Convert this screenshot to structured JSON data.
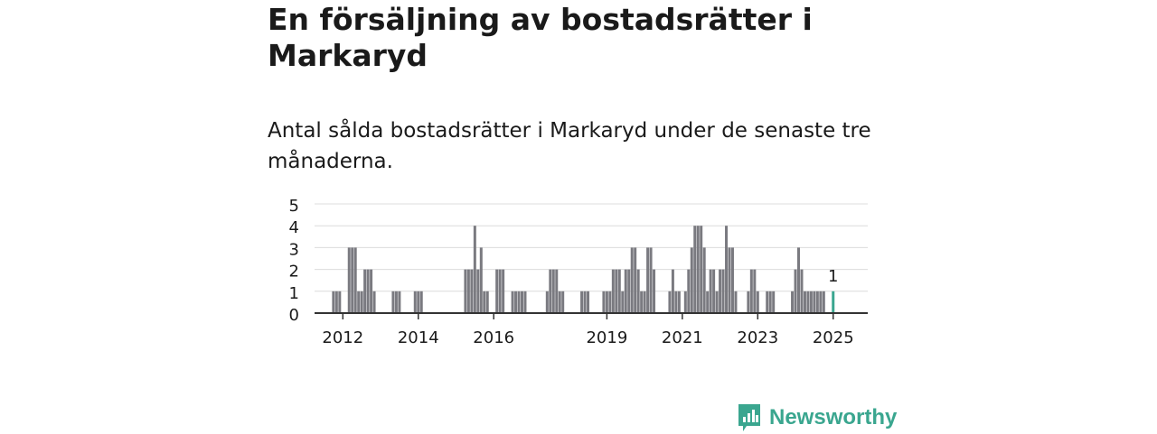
{
  "header": {
    "title": "En försäljning av bostadsrätter i Markaryd",
    "subtitle": "Antal sålda bostadsrätter i Markaryd under de senaste tre månaderna."
  },
  "brand": {
    "name": "Newsworthy",
    "color": "#3aa68f"
  },
  "chart_data": {
    "type": "bar",
    "title": "",
    "xlabel": "",
    "ylabel": "",
    "ylim": [
      0,
      5
    ],
    "y_ticks": [
      "0",
      "1",
      "2",
      "3",
      "4",
      "5"
    ],
    "x_ticks": [
      "2012",
      "2014",
      "2016",
      "2019",
      "2021",
      "2023",
      "2025"
    ],
    "x_range": [
      "2011-04",
      "2025-12"
    ],
    "grid": true,
    "bar_color": "#7a7a80",
    "highlight_color": "#3aa68f",
    "highlight_label": "1",
    "series": [
      {
        "values": [
          {
            "x": "2011-10",
            "y": 1
          },
          {
            "x": "2011-11",
            "y": 1
          },
          {
            "x": "2011-12",
            "y": 1
          },
          {
            "x": "2012-03",
            "y": 3
          },
          {
            "x": "2012-04",
            "y": 3
          },
          {
            "x": "2012-05",
            "y": 3
          },
          {
            "x": "2012-06",
            "y": 1
          },
          {
            "x": "2012-07",
            "y": 1
          },
          {
            "x": "2012-08",
            "y": 2
          },
          {
            "x": "2012-09",
            "y": 2
          },
          {
            "x": "2012-10",
            "y": 2
          },
          {
            "x": "2012-11",
            "y": 1
          },
          {
            "x": "2013-05",
            "y": 1
          },
          {
            "x": "2013-06",
            "y": 1
          },
          {
            "x": "2013-07",
            "y": 1
          },
          {
            "x": "2013-12",
            "y": 1
          },
          {
            "x": "2014-01",
            "y": 1
          },
          {
            "x": "2014-02",
            "y": 1
          },
          {
            "x": "2015-04",
            "y": 2
          },
          {
            "x": "2015-05",
            "y": 2
          },
          {
            "x": "2015-06",
            "y": 2
          },
          {
            "x": "2015-07",
            "y": 4
          },
          {
            "x": "2015-08",
            "y": 2
          },
          {
            "x": "2015-09",
            "y": 3
          },
          {
            "x": "2015-10",
            "y": 1
          },
          {
            "x": "2015-11",
            "y": 1
          },
          {
            "x": "2016-02",
            "y": 2
          },
          {
            "x": "2016-03",
            "y": 2
          },
          {
            "x": "2016-04",
            "y": 2
          },
          {
            "x": "2016-07",
            "y": 1
          },
          {
            "x": "2016-08",
            "y": 1
          },
          {
            "x": "2016-09",
            "y": 1
          },
          {
            "x": "2016-10",
            "y": 1
          },
          {
            "x": "2016-11",
            "y": 1
          },
          {
            "x": "2017-06",
            "y": 1
          },
          {
            "x": "2017-07",
            "y": 2
          },
          {
            "x": "2017-08",
            "y": 2
          },
          {
            "x": "2017-09",
            "y": 2
          },
          {
            "x": "2017-10",
            "y": 1
          },
          {
            "x": "2017-11",
            "y": 1
          },
          {
            "x": "2018-05",
            "y": 1
          },
          {
            "x": "2018-06",
            "y": 1
          },
          {
            "x": "2018-07",
            "y": 1
          },
          {
            "x": "2018-12",
            "y": 1
          },
          {
            "x": "2019-01",
            "y": 1
          },
          {
            "x": "2019-02",
            "y": 1
          },
          {
            "x": "2019-03",
            "y": 2
          },
          {
            "x": "2019-04",
            "y": 2
          },
          {
            "x": "2019-05",
            "y": 2
          },
          {
            "x": "2019-06",
            "y": 1
          },
          {
            "x": "2019-07",
            "y": 2
          },
          {
            "x": "2019-08",
            "y": 2
          },
          {
            "x": "2019-09",
            "y": 3
          },
          {
            "x": "2019-10",
            "y": 3
          },
          {
            "x": "2019-11",
            "y": 2
          },
          {
            "x": "2019-12",
            "y": 1
          },
          {
            "x": "2020-01",
            "y": 1
          },
          {
            "x": "2020-02",
            "y": 3
          },
          {
            "x": "2020-03",
            "y": 3
          },
          {
            "x": "2020-04",
            "y": 2
          },
          {
            "x": "2020-09",
            "y": 1
          },
          {
            "x": "2020-10",
            "y": 2
          },
          {
            "x": "2020-11",
            "y": 1
          },
          {
            "x": "2020-12",
            "y": 1
          },
          {
            "x": "2021-02",
            "y": 1
          },
          {
            "x": "2021-03",
            "y": 2
          },
          {
            "x": "2021-04",
            "y": 3
          },
          {
            "x": "2021-05",
            "y": 4
          },
          {
            "x": "2021-06",
            "y": 4
          },
          {
            "x": "2021-07",
            "y": 4
          },
          {
            "x": "2021-08",
            "y": 3
          },
          {
            "x": "2021-09",
            "y": 1
          },
          {
            "x": "2021-10",
            "y": 2
          },
          {
            "x": "2021-11",
            "y": 2
          },
          {
            "x": "2021-12",
            "y": 1
          },
          {
            "x": "2022-01",
            "y": 2
          },
          {
            "x": "2022-02",
            "y": 2
          },
          {
            "x": "2022-03",
            "y": 4
          },
          {
            "x": "2022-04",
            "y": 3
          },
          {
            "x": "2022-05",
            "y": 3
          },
          {
            "x": "2022-06",
            "y": 1
          },
          {
            "x": "2022-10",
            "y": 1
          },
          {
            "x": "2022-11",
            "y": 2
          },
          {
            "x": "2022-12",
            "y": 2
          },
          {
            "x": "2023-01",
            "y": 1
          },
          {
            "x": "2023-04",
            "y": 1
          },
          {
            "x": "2023-05",
            "y": 1
          },
          {
            "x": "2023-06",
            "y": 1
          },
          {
            "x": "2023-12",
            "y": 1
          },
          {
            "x": "2024-01",
            "y": 2
          },
          {
            "x": "2024-02",
            "y": 3
          },
          {
            "x": "2024-03",
            "y": 2
          },
          {
            "x": "2024-04",
            "y": 1
          },
          {
            "x": "2024-05",
            "y": 1
          },
          {
            "x": "2024-06",
            "y": 1
          },
          {
            "x": "2024-07",
            "y": 1
          },
          {
            "x": "2024-08",
            "y": 1
          },
          {
            "x": "2024-09",
            "y": 1
          },
          {
            "x": "2024-10",
            "y": 1
          }
        ]
      }
    ],
    "highlight_point": {
      "x": "2025-01",
      "y": 1
    }
  }
}
